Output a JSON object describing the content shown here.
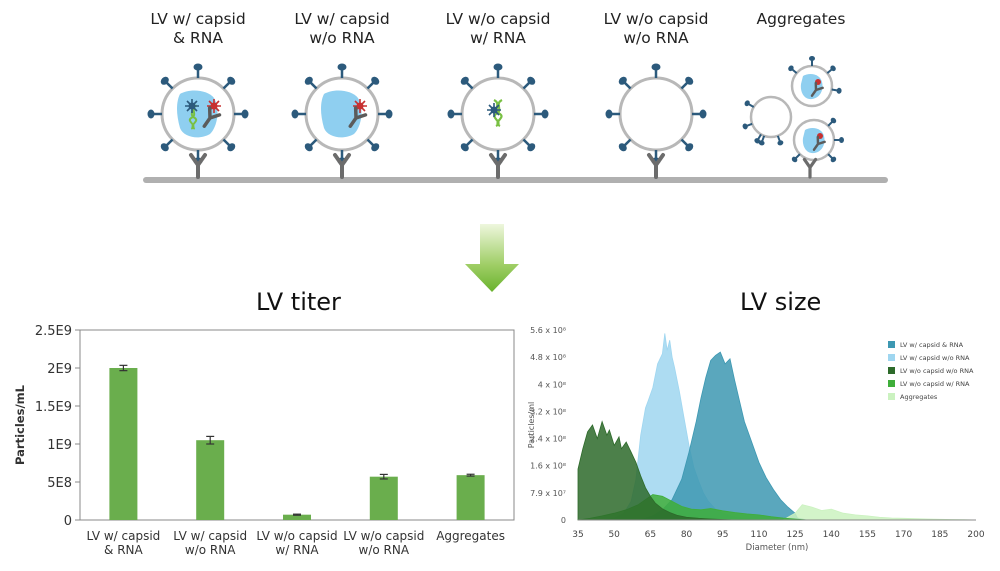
{
  "diagram": {
    "categories": [
      {
        "label": "LV w/ capsid\n& RNA"
      },
      {
        "label": "LV w/ capsid\nw/o RNA"
      },
      {
        "label": "LV w/o capsid\nw/ RNA"
      },
      {
        "label": "LV w/o capsid\nw/o RNA"
      },
      {
        "label": "Aggregates"
      }
    ],
    "titles": {
      "titer": "LV titer",
      "size": "LV size"
    },
    "colors": {
      "membrane": "#b8b8b8",
      "spike": "#2c5a7c",
      "capsid": "#8fcff0",
      "antibody": "#6c6c6c",
      "surface": "#b0b0b0",
      "arrow_top": "#e6f3cf",
      "arrow_bottom": "#69b22d"
    }
  },
  "chart_data": [
    {
      "type": "bar",
      "title": "LV titer",
      "ylabel": "Particles/mL",
      "xlabel": "",
      "categories": [
        "LV w/ capsid\n& RNA",
        "LV w/ capsid\nw/o RNA",
        "LV w/o capsid\nw/ RNA",
        "LV w/o capsid\nw/o RNA",
        "Aggregates"
      ],
      "values": [
        2000000000.0,
        1050000000.0,
        70000000.0,
        570000000.0,
        590000000.0
      ],
      "errors": [
        35000000.0,
        50000000.0,
        7000000.0,
        30000000.0,
        12000000.0
      ],
      "ylim": [
        0,
        2500000000.0
      ],
      "yticks": [
        0,
        500000000.0,
        1000000000.0,
        1500000000.0,
        2000000000.0,
        2500000000.0
      ],
      "ytick_labels": [
        "0",
        "5E8",
        "1E9",
        "1.5E9",
        "2E9",
        "2.5E9"
      ],
      "color": "#6aae4d"
    },
    {
      "type": "area",
      "title": "LV size",
      "xlabel": "Diameter (nm)",
      "ylabel": "Particles/ml",
      "xlim": [
        35,
        200
      ],
      "xticks": [
        35,
        50,
        65,
        80,
        95,
        110,
        125,
        140,
        155,
        170,
        185,
        200
      ],
      "ylim": [
        0,
        560000000.0
      ],
      "yticks": [
        0,
        79000000.0,
        160000000.0,
        240000000.0,
        320000000.0,
        400000000.0,
        480000000.0,
        560000000.0
      ],
      "ytick_labels": [
        "0",
        "7.9 x 10⁷",
        "1.6 x 10⁸",
        "2.4 x 10⁸",
        "3.2 x 10⁸",
        "4 x 10⁸",
        "4.8 x 10⁸",
        "5.6 x 10⁸"
      ],
      "legend": "top-right",
      "series": [
        {
          "name": "LV w/ capsid & RNA",
          "color": "#3d98b2",
          "x": [
            60,
            63,
            66,
            70,
            74,
            78,
            81,
            84,
            86,
            88,
            90,
            92,
            94,
            96,
            98,
            100,
            102,
            104,
            106,
            108,
            110,
            113,
            116,
            119,
            122,
            125,
            126,
            130
          ],
          "y": [
            0,
            5000000.0,
            12000000.0,
            30000000.0,
            60000000.0,
            120000000.0,
            200000000.0,
            290000000.0,
            360000000.0,
            420000000.0,
            470000000.0,
            485000000.0,
            495000000.0,
            460000000.0,
            475000000.0,
            410000000.0,
            350000000.0,
            290000000.0,
            250000000.0,
            210000000.0,
            170000000.0,
            125000000.0,
            90000000.0,
            60000000.0,
            38000000.0,
            20000000.0,
            6000000.0,
            0
          ]
        },
        {
          "name": "LV w/ capsid w/o RNA",
          "color": "#9fd6f0",
          "x": [
            45,
            50,
            54,
            57,
            59,
            61,
            63,
            64,
            66,
            68,
            70,
            71,
            72,
            73,
            74,
            75,
            77,
            79,
            81,
            83,
            85,
            87,
            89,
            92,
            95,
            98,
            101,
            104,
            107,
            110
          ],
          "y": [
            0,
            5000000.0,
            20000000.0,
            55000000.0,
            120000000.0,
            250000000.0,
            330000000.0,
            350000000.0,
            390000000.0,
            460000000.0,
            490000000.0,
            550000000.0,
            500000000.0,
            530000000.0,
            480000000.0,
            450000000.0,
            380000000.0,
            300000000.0,
            220000000.0,
            155000000.0,
            115000000.0,
            80000000.0,
            55000000.0,
            32000000.0,
            20000000.0,
            12000000.0,
            7000000.0,
            4000000.0,
            2000000.0,
            0
          ]
        },
        {
          "name": "LV w/o capsid w/o RNA",
          "color": "#2d6a2a",
          "x": [
            35,
            37,
            39,
            41,
            43,
            45,
            47,
            48,
            50,
            52,
            53,
            55,
            57,
            59,
            61,
            63,
            65,
            67,
            70,
            73,
            76,
            80,
            85,
            90,
            95,
            100
          ],
          "y": [
            150000000.0,
            210000000.0,
            260000000.0,
            280000000.0,
            240000000.0,
            290000000.0,
            250000000.0,
            265000000.0,
            220000000.0,
            245000000.0,
            210000000.0,
            230000000.0,
            200000000.0,
            170000000.0,
            130000000.0,
            95000000.0,
            70000000.0,
            50000000.0,
            33000000.0,
            22000000.0,
            14000000.0,
            8000000.0,
            5000000.0,
            3000000.0,
            1500000.0,
            0
          ]
        },
        {
          "name": "LV w/o capsid w/ RNA",
          "color": "#3fae3a",
          "x": [
            35,
            40,
            45,
            50,
            55,
            60,
            63,
            66,
            70,
            74,
            78,
            82,
            86,
            90,
            95,
            100,
            105,
            110,
            115,
            120,
            125,
            130
          ],
          "y": [
            0,
            5000000.0,
            12000000.0,
            20000000.0,
            30000000.0,
            45000000.0,
            60000000.0,
            75000000.0,
            70000000.0,
            55000000.0,
            40000000.0,
            32000000.0,
            30000000.0,
            34000000.0,
            27000000.0,
            22000000.0,
            18000000.0,
            15000000.0,
            10000000.0,
            6000000.0,
            3000000.0,
            0
          ]
        },
        {
          "name": "Aggregates",
          "color": "#cbf2c0",
          "x": [
            120,
            125,
            128,
            132,
            136,
            140,
            145,
            150,
            155,
            160,
            165,
            170,
            175,
            180,
            185,
            190,
            195,
            200
          ],
          "y": [
            0,
            20000000.0,
            45000000.0,
            38000000.0,
            28000000.0,
            32000000.0,
            20000000.0,
            15000000.0,
            12000000.0,
            8000000.0,
            6000000.0,
            5000000.0,
            4000000.0,
            3000000.0,
            2000000.0,
            1500000.0,
            1000000.0,
            0
          ]
        }
      ]
    }
  ]
}
